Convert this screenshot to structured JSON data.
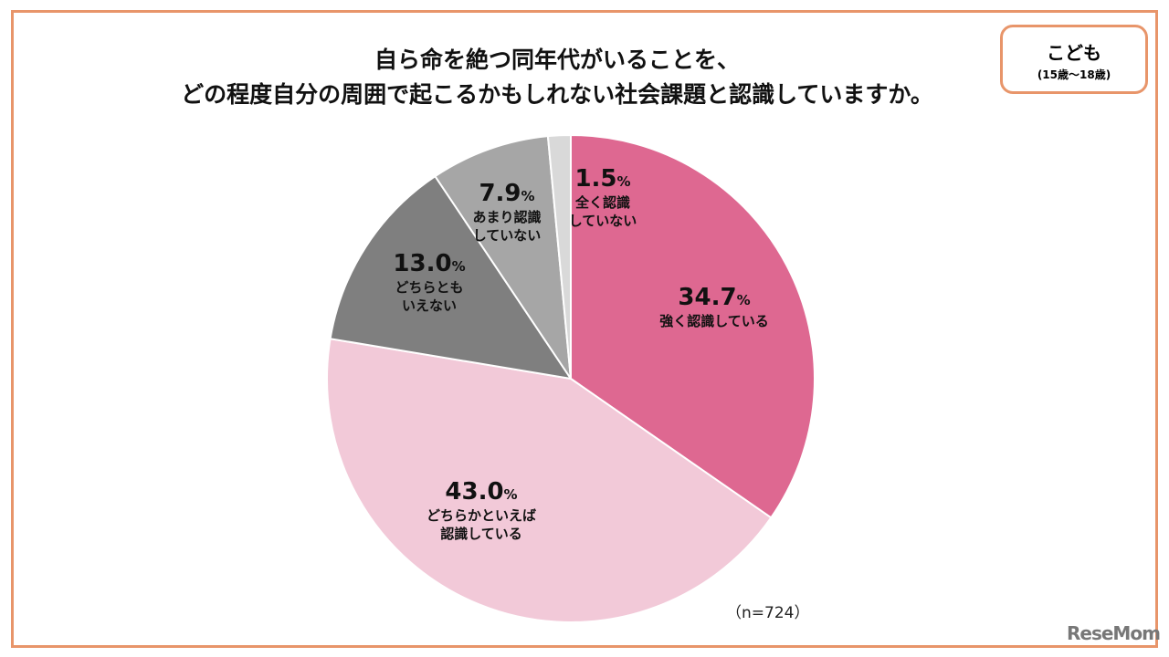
{
  "title_line1": "自ら命を絶つ同年代がいることを、",
  "title_line2": "どの程度自分の周囲で起こるかもしれない社会課題と認識していますか。",
  "badge": {
    "label": "こども",
    "sub": "(15歳～18歳)"
  },
  "sample_note": "（n=724）",
  "logo": "ReseMom",
  "chart_data": {
    "type": "pie",
    "title": "自ら命を絶つ同年代がいることを、どの程度自分の周囲で起こるかもしれない社会課題と認識していますか。",
    "unit": "%",
    "slices": [
      {
        "label_1": "強く認識している",
        "label_2": "",
        "value": 34.7,
        "value_text": "34.7",
        "color": "#DE6891"
      },
      {
        "label_1": "どちらかといえば",
        "label_2": "認識している",
        "value": 43.0,
        "value_text": "43.0",
        "color": "#F2C9D8"
      },
      {
        "label_1": "どちらとも",
        "label_2": "いえない",
        "value": 13.0,
        "value_text": "13.0",
        "color": "#7F7F7F"
      },
      {
        "label_1": "あまり認識",
        "label_2": "していない",
        "value": 7.9,
        "value_text": "7.9",
        "color": "#A6A6A6"
      },
      {
        "label_1": "全く認識",
        "label_2": "していない",
        "value": 1.5,
        "value_text": "1.5",
        "color": "#D9D9D9"
      }
    ]
  }
}
